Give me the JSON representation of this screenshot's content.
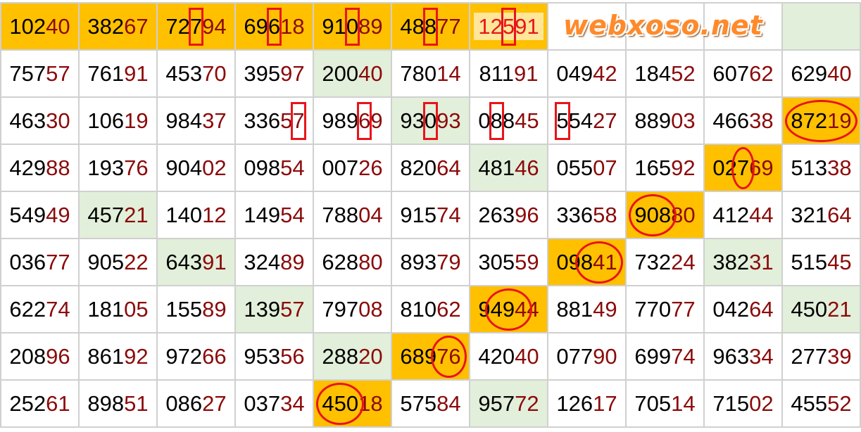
{
  "watermark": "webxoso.net",
  "colors": {
    "orange": "#FFC000",
    "green": "#E2EFDA",
    "white": "#FFFFFF",
    "mark": "#E8141B",
    "tail_digits": "#8B0A0A"
  },
  "rows": [
    [
      {
        "value": "10240",
        "bg": "orange"
      },
      {
        "value": "38267",
        "bg": "orange"
      },
      {
        "value": "72794",
        "bg": "orange",
        "mark": {
          "type": "box",
          "from": 2,
          "to": 2
        }
      },
      {
        "value": "69618",
        "bg": "orange",
        "mark": {
          "type": "box",
          "from": 2,
          "to": 2
        }
      },
      {
        "value": "91089",
        "bg": "orange",
        "mark": {
          "type": "box",
          "from": 2,
          "to": 2
        }
      },
      {
        "value": "48877",
        "bg": "orange",
        "mark": {
          "type": "box",
          "from": 2,
          "to": 2
        }
      },
      {
        "value": "12591",
        "bg": "orange",
        "inner": "yellow",
        "mark": {
          "type": "box",
          "from": 2,
          "to": 2
        }
      },
      {
        "value": "",
        "bg": "white"
      },
      {
        "value": "",
        "bg": "white"
      },
      {
        "value": "",
        "bg": "white"
      },
      {
        "value": "",
        "bg": "green"
      }
    ],
    [
      {
        "value": "75757",
        "bg": "white"
      },
      {
        "value": "76191",
        "bg": "white"
      },
      {
        "value": "45370",
        "bg": "white"
      },
      {
        "value": "39597",
        "bg": "white"
      },
      {
        "value": "20040",
        "bg": "green"
      },
      {
        "value": "78014",
        "bg": "white"
      },
      {
        "value": "81191",
        "bg": "white"
      },
      {
        "value": "04942",
        "bg": "white"
      },
      {
        "value": "18452",
        "bg": "white"
      },
      {
        "value": "60762",
        "bg": "white"
      },
      {
        "value": "62940",
        "bg": "white"
      }
    ],
    [
      {
        "value": "46330",
        "bg": "white"
      },
      {
        "value": "10619",
        "bg": "white"
      },
      {
        "value": "98437",
        "bg": "white"
      },
      {
        "value": "33657",
        "bg": "white",
        "mark": {
          "type": "box",
          "from": 4,
          "to": 4
        }
      },
      {
        "value": "98969",
        "bg": "white",
        "mark": {
          "type": "box",
          "from": 3,
          "to": 3
        }
      },
      {
        "value": "93093",
        "bg": "green",
        "mark": {
          "type": "box",
          "from": 2,
          "to": 2
        }
      },
      {
        "value": "08845",
        "bg": "white",
        "mark": {
          "type": "box",
          "from": 1,
          "to": 1
        }
      },
      {
        "value": "55427",
        "bg": "white",
        "mark": {
          "type": "box",
          "from": 0,
          "to": 0
        }
      },
      {
        "value": "88903",
        "bg": "white"
      },
      {
        "value": "46638",
        "bg": "white"
      },
      {
        "value": "87219",
        "bg": "orange",
        "mark": {
          "type": "ellipse",
          "from": 0,
          "to": 4
        }
      }
    ],
    [
      {
        "value": "42988",
        "bg": "white"
      },
      {
        "value": "19376",
        "bg": "white"
      },
      {
        "value": "90402",
        "bg": "white"
      },
      {
        "value": "09854",
        "bg": "white"
      },
      {
        "value": "00726",
        "bg": "white"
      },
      {
        "value": "82064",
        "bg": "white"
      },
      {
        "value": "48146",
        "bg": "green"
      },
      {
        "value": "05507",
        "bg": "white"
      },
      {
        "value": "16592",
        "bg": "white"
      },
      {
        "value": "02769",
        "bg": "orange",
        "mark": {
          "type": "ellipse",
          "from": 2,
          "to": 2
        }
      },
      {
        "value": "51338",
        "bg": "white"
      }
    ],
    [
      {
        "value": "54949",
        "bg": "white"
      },
      {
        "value": "45721",
        "bg": "green"
      },
      {
        "value": "14012",
        "bg": "white"
      },
      {
        "value": "14954",
        "bg": "white"
      },
      {
        "value": "78804",
        "bg": "white"
      },
      {
        "value": "91574",
        "bg": "white"
      },
      {
        "value": "26396",
        "bg": "white"
      },
      {
        "value": "33658",
        "bg": "white"
      },
      {
        "value": "90880",
        "bg": "orange",
        "mark": {
          "type": "ellipse",
          "from": 0,
          "to": 2
        }
      },
      {
        "value": "41244",
        "bg": "white"
      },
      {
        "value": "32164",
        "bg": "white"
      }
    ],
    [
      {
        "value": "03677",
        "bg": "white"
      },
      {
        "value": "90522",
        "bg": "white"
      },
      {
        "value": "64391",
        "bg": "green"
      },
      {
        "value": "32489",
        "bg": "white"
      },
      {
        "value": "62880",
        "bg": "white"
      },
      {
        "value": "89379",
        "bg": "white"
      },
      {
        "value": "30559",
        "bg": "white"
      },
      {
        "value": "09841",
        "bg": "orange",
        "mark": {
          "type": "ellipse",
          "from": 2,
          "to": 4
        }
      },
      {
        "value": "73224",
        "bg": "white"
      },
      {
        "value": "38231",
        "bg": "green"
      },
      {
        "value": "51545",
        "bg": "white"
      }
    ],
    [
      {
        "value": "62274",
        "bg": "white"
      },
      {
        "value": "18105",
        "bg": "white"
      },
      {
        "value": "15589",
        "bg": "white"
      },
      {
        "value": "13957",
        "bg": "green"
      },
      {
        "value": "79708",
        "bg": "white"
      },
      {
        "value": "81062",
        "bg": "white"
      },
      {
        "value": "94944",
        "bg": "orange",
        "mark": {
          "type": "ellipse",
          "from": 1,
          "to": 3
        }
      },
      {
        "value": "88149",
        "bg": "white"
      },
      {
        "value": "77077",
        "bg": "white"
      },
      {
        "value": "04264",
        "bg": "white"
      },
      {
        "value": "45021",
        "bg": "green"
      }
    ],
    [
      {
        "value": "20896",
        "bg": "white"
      },
      {
        "value": "86192",
        "bg": "white"
      },
      {
        "value": "97266",
        "bg": "white"
      },
      {
        "value": "95356",
        "bg": "white"
      },
      {
        "value": "28820",
        "bg": "green"
      },
      {
        "value": "68976",
        "bg": "orange",
        "mark": {
          "type": "ellipse",
          "from": 3,
          "to": 4
        }
      },
      {
        "value": "42040",
        "bg": "white"
      },
      {
        "value": "07790",
        "bg": "white"
      },
      {
        "value": "69974",
        "bg": "white"
      },
      {
        "value": "96334",
        "bg": "white"
      },
      {
        "value": "27739",
        "bg": "white"
      }
    ],
    [
      {
        "value": "25261",
        "bg": "white"
      },
      {
        "value": "89851",
        "bg": "white"
      },
      {
        "value": "08627",
        "bg": "white"
      },
      {
        "value": "03734",
        "bg": "white"
      },
      {
        "value": "45018",
        "bg": "orange",
        "mark": {
          "type": "ellipse",
          "from": 0,
          "to": 2
        }
      },
      {
        "value": "57584",
        "bg": "white"
      },
      {
        "value": "95772",
        "bg": "green"
      },
      {
        "value": "12617",
        "bg": "white"
      },
      {
        "value": "70514",
        "bg": "white"
      },
      {
        "value": "71502",
        "bg": "white"
      },
      {
        "value": "45552",
        "bg": "white"
      }
    ]
  ]
}
